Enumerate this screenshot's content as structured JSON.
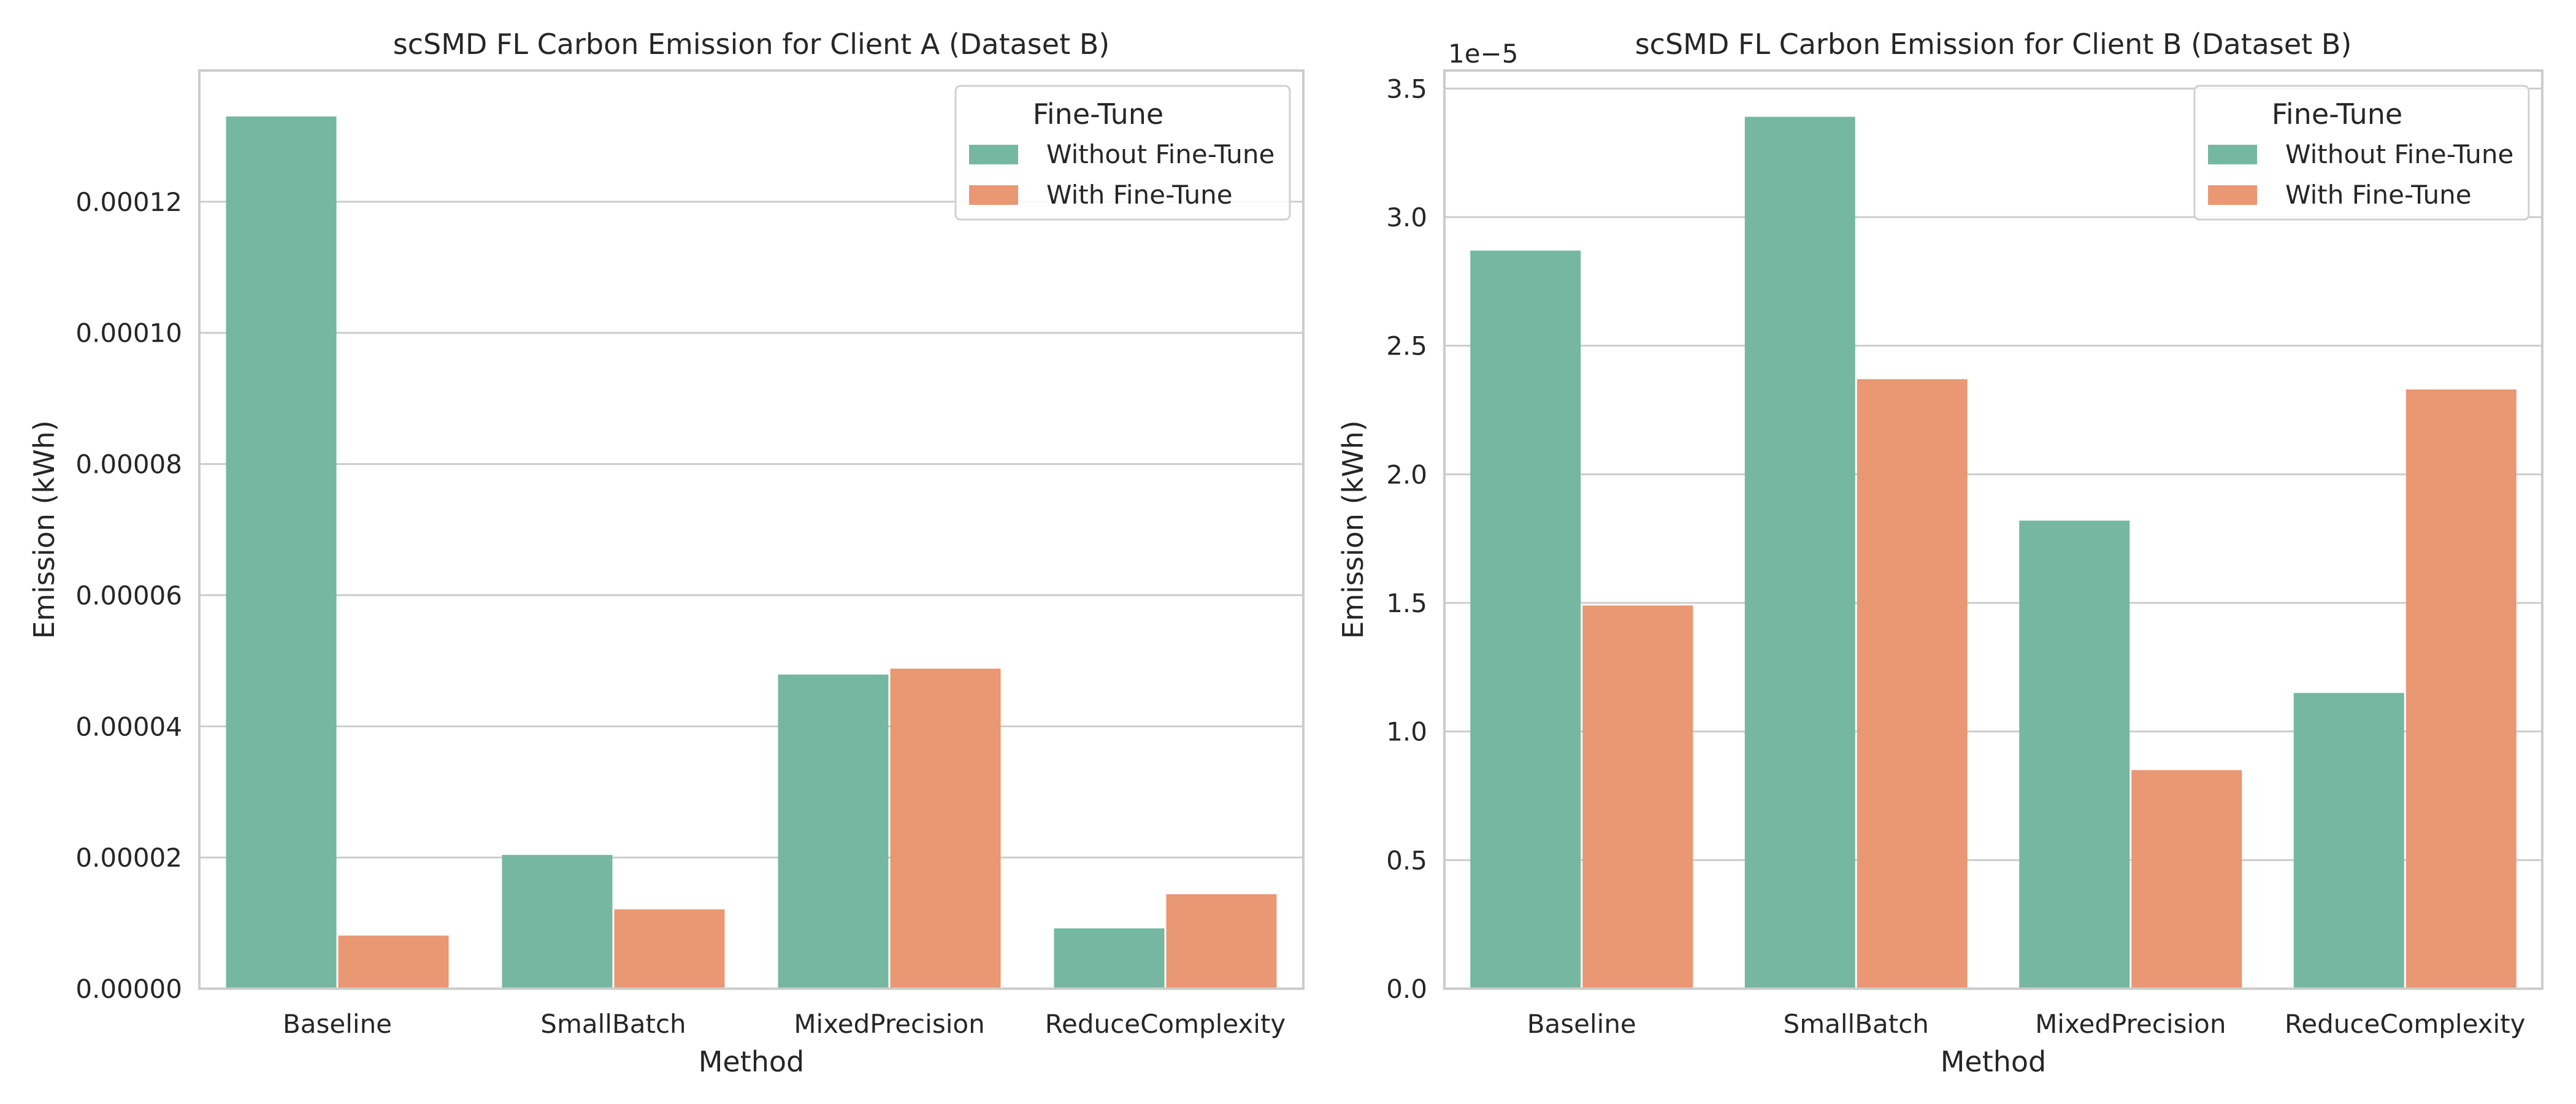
{
  "colors": {
    "without": "#76b7a1",
    "with": "#ea9774",
    "grid": "#cccccc",
    "frame": "#cccccc",
    "text": "#262626",
    "legend_border": "#d0d0d0"
  },
  "chart_data": [
    {
      "type": "bar",
      "title": "scSMD FL Carbon Emission for Client A (Dataset B)",
      "xlabel": "Method",
      "ylabel": "Emission (kWh)",
      "offset_label": "",
      "categories": [
        "Baseline",
        "SmallBatch",
        "MixedPrecision",
        "ReduceComplexity"
      ],
      "series": [
        {
          "name": "Without Fine-Tune",
          "values": [
            0.000133,
            2.04e-05,
            4.79e-05,
            9.2e-06
          ]
        },
        {
          "name": "With Fine-Tune",
          "values": [
            8.1e-06,
            1.21e-05,
            4.88e-05,
            1.44e-05
          ]
        }
      ],
      "ylim": [
        0,
        0.00014
      ],
      "yticks": [
        0,
        2e-05,
        4e-05,
        6e-05,
        8e-05,
        0.0001,
        0.00012
      ],
      "ytick_labels": [
        "0.00000",
        "0.00002",
        "0.00004",
        "0.00006",
        "0.00008",
        "0.00010",
        "0.00012"
      ],
      "legend": {
        "title": "Fine-Tune",
        "placement": "top-right"
      },
      "grid": "horizontal"
    },
    {
      "type": "bar",
      "title": "scSMD FL Carbon Emission for Client B (Dataset B)",
      "xlabel": "Method",
      "ylabel": "Emission (kWh)",
      "offset_label": "1e−5",
      "categories": [
        "Baseline",
        "SmallBatch",
        "MixedPrecision",
        "ReduceComplexity"
      ],
      "series": [
        {
          "name": "Without Fine-Tune",
          "values": [
            2.87,
            3.39,
            1.82,
            1.15
          ]
        },
        {
          "name": "With Fine-Tune",
          "values": [
            1.49,
            2.37,
            0.85,
            2.33
          ]
        }
      ],
      "ylim": [
        0,
        3.57
      ],
      "yticks": [
        0,
        0.5,
        1,
        1.5,
        2,
        2.5,
        3,
        3.5
      ],
      "ytick_labels": [
        "0.0",
        "0.5",
        "1.0",
        "1.5",
        "2.0",
        "2.5",
        "3.0",
        "3.5"
      ],
      "legend": {
        "title": "Fine-Tune",
        "placement": "top-right"
      },
      "grid": "horizontal"
    }
  ]
}
